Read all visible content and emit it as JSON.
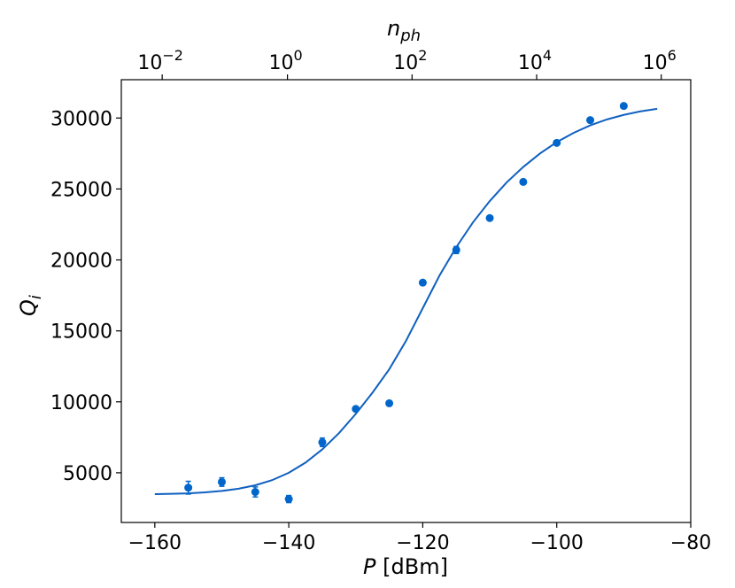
{
  "chart_data": {
    "type": "scatter",
    "xlabel": {
      "main": "P",
      "unit": " [dBm]"
    },
    "ylabel": {
      "main": "Q",
      "sub": "i"
    },
    "top_xlabel": {
      "main": "n",
      "sub": "ph"
    },
    "xlim": [
      -165,
      -80
    ],
    "ylim": [
      1500,
      32700
    ],
    "x_ticks": [
      -160,
      -140,
      -120,
      -100,
      -80
    ],
    "x_tick_labels": [
      "−160",
      "−140",
      "−120",
      "−100",
      "−80"
    ],
    "y_ticks": [
      5000,
      10000,
      15000,
      20000,
      25000,
      30000
    ],
    "y_tick_labels": [
      "5000",
      "10000",
      "15000",
      "20000",
      "25000",
      "30000"
    ],
    "top_ticks": [
      {
        "p": -158.9,
        "base": "10",
        "exp": "−2"
      },
      {
        "p": -140.2,
        "base": "10",
        "exp": "0"
      },
      {
        "p": -121.6,
        "base": "10",
        "exp": "2"
      },
      {
        "p": -103.0,
        "base": "10",
        "exp": "4"
      },
      {
        "p": -84.4,
        "base": "10",
        "exp": "6"
      }
    ],
    "top_scale": "log",
    "colors": {
      "data": "#0066cc",
      "fit": "#1060c0",
      "axes": "#000000"
    },
    "series": [
      {
        "kind": "points_with_errorbars",
        "x": [
          -155,
          -150,
          -145,
          -140,
          -135,
          -130,
          -125,
          -120,
          -115,
          -110,
          -105,
          -100,
          -95,
          -90
        ],
        "y": [
          3950,
          4350,
          3650,
          3150,
          7150,
          9500,
          9900,
          18400,
          20700,
          22950,
          25500,
          28250,
          29850,
          30850
        ],
        "yerr": [
          450,
          300,
          350,
          250,
          300,
          150,
          100,
          100,
          250,
          100,
          100,
          100,
          100,
          100
        ]
      },
      {
        "kind": "fit_curve",
        "x": [
          -160,
          -157.5,
          -155,
          -152.5,
          -150,
          -147.5,
          -145,
          -142.5,
          -140,
          -137.5,
          -135,
          -132.5,
          -130,
          -127.5,
          -125,
          -122.5,
          -120,
          -117.5,
          -115,
          -112.5,
          -110,
          -107.5,
          -105,
          -102.5,
          -100,
          -97.5,
          -95,
          -92.5,
          -90,
          -87.5,
          -85
        ],
        "y": [
          3500,
          3520,
          3550,
          3620,
          3720,
          3880,
          4120,
          4480,
          5000,
          5720,
          6650,
          7800,
          9150,
          10650,
          12300,
          14300,
          16600,
          18900,
          20900,
          22650,
          24150,
          25450,
          26550,
          27500,
          28300,
          28950,
          29480,
          29900,
          30220,
          30470,
          30650
        ]
      }
    ]
  }
}
